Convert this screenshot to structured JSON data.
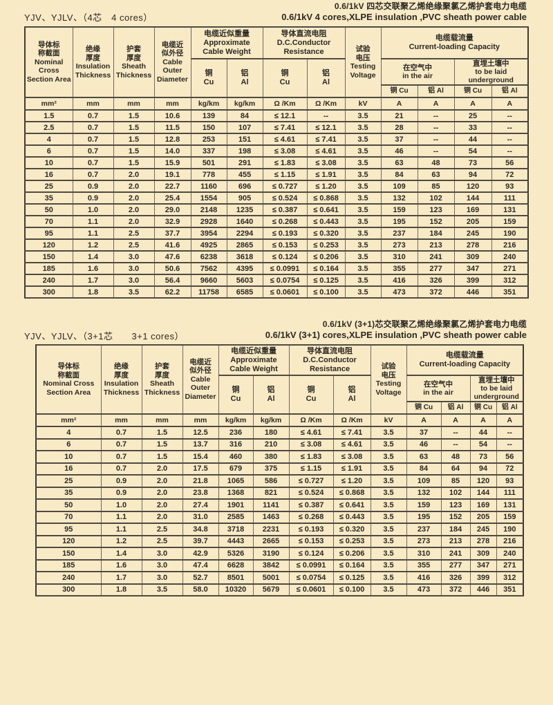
{
  "sections": [
    {
      "title_cn": "0.6/1kV 四芯交联聚乙烯绝缘聚氯乙烯护套电力电缆",
      "title_en": "0.6/1kV 4 cores,XLPE insulation ,PVC sheath power cable",
      "model_label": "YJV、YJLV、（4芯　4 cores）",
      "header": {
        "area": "导体标\n称截面\nNominal\nCross\nSection Area",
        "insulation": "绝缘\n厚度\nInsulation\nThickness",
        "sheath": "护套\n厚度\nSheath\nThickness",
        "diameter": "电缆近\n似外径\nCable\nOuter\nDiameter",
        "weight_group": "电缆近似重量\nApproximate\nCable Weight",
        "resistance_group": "导体直流电阻\nD.C.Conductor\nResistance",
        "voltage": "试验\n电压\nTesting\nVoltage",
        "capacity_group": "电缆载流量\nCurrent-loading Capacity",
        "air_group": "在空气中\nin the air",
        "underground_group": "直埋土壤中\nto be laid\nunderground",
        "cu_twoline": "铜\nCu",
        "al_twoline": "铝\nAl",
        "cu_oneline": "铜 Cu",
        "al_oneline": "铝 Al"
      },
      "units": [
        "mm²",
        "mm",
        "mm",
        "mm",
        "kg/km",
        "kg/km",
        "Ω /Km",
        "Ω /Km",
        "kV",
        "A",
        "A",
        "A",
        "A"
      ],
      "rows": [
        [
          "1.5",
          "0.7",
          "1.5",
          "10.6",
          "139",
          "84",
          "≤ 12.1",
          "--",
          "3.5",
          "21",
          "--",
          "25",
          "--"
        ],
        [
          "2.5",
          "0.7",
          "1.5",
          "11.5",
          "150",
          "107",
          "≤ 7.41",
          "≤ 12.1",
          "3.5",
          "28",
          "--",
          "33",
          "--"
        ],
        [
          "4",
          "0.7",
          "1.5",
          "12.8",
          "253",
          "151",
          "≤ 4.61",
          "≤ 7.41",
          "3.5",
          "37",
          "--",
          "44",
          "--"
        ],
        [
          "6",
          "0.7",
          "1.5",
          "14.0",
          "337",
          "198",
          "≤ 3.08",
          "≤ 4.61",
          "3.5",
          "46",
          "--",
          "54",
          "--"
        ],
        [
          "10",
          "0.7",
          "1.5",
          "15.9",
          "501",
          "291",
          "≤ 1.83",
          "≤ 3.08",
          "3.5",
          "63",
          "48",
          "73",
          "56"
        ],
        [
          "16",
          "0.7",
          "2.0",
          "19.1",
          "778",
          "455",
          "≤ 1.15",
          "≤ 1.91",
          "3.5",
          "84",
          "63",
          "94",
          "72"
        ],
        [
          "25",
          "0.9",
          "2.0",
          "22.7",
          "1160",
          "696",
          "≤ 0.727",
          "≤ 1.20",
          "3.5",
          "109",
          "85",
          "120",
          "93"
        ],
        [
          "35",
          "0.9",
          "2.0",
          "25.4",
          "1554",
          "905",
          "≤ 0.524",
          "≤ 0.868",
          "3.5",
          "132",
          "102",
          "144",
          "111"
        ],
        [
          "50",
          "1.0",
          "2.0",
          "29.0",
          "2148",
          "1235",
          "≤ 0.387",
          "≤ 0.641",
          "3.5",
          "159",
          "123",
          "169",
          "131"
        ],
        [
          "70",
          "1.1",
          "2.0",
          "32.9",
          "2928",
          "1640",
          "≤ 0.268",
          "≤ 0.443",
          "3.5",
          "195",
          "152",
          "205",
          "159"
        ],
        [
          "95",
          "1.1",
          "2.5",
          "37.7",
          "3954",
          "2294",
          "≤ 0.193",
          "≤ 0.320",
          "3.5",
          "237",
          "184",
          "245",
          "190"
        ],
        [
          "120",
          "1.2",
          "2.5",
          "41.6",
          "4925",
          "2865",
          "≤ 0.153",
          "≤ 0.253",
          "3.5",
          "273",
          "213",
          "278",
          "216"
        ],
        [
          "150",
          "1.4",
          "3.0",
          "47.6",
          "6238",
          "3618",
          "≤ 0.124",
          "≤ 0.206",
          "3.5",
          "310",
          "241",
          "309",
          "240"
        ],
        [
          "185",
          "1.6",
          "3.0",
          "50.6",
          "7562",
          "4395",
          "≤ 0.0991",
          "≤ 0.164",
          "3.5",
          "355",
          "277",
          "347",
          "271"
        ],
        [
          "240",
          "1.7",
          "3.0",
          "56.4",
          "9660",
          "5603",
          "≤ 0.0754",
          "≤ 0.125",
          "3.5",
          "416",
          "326",
          "399",
          "312"
        ],
        [
          "300",
          "1.8",
          "3.5",
          "62.2",
          "11758",
          "6585",
          "≤ 0.0601",
          "≤ 0.100",
          "3.5",
          "473",
          "372",
          "446",
          "351"
        ]
      ]
    },
    {
      "title_cn": "0.6/1kV (3+1)芯交联聚乙烯绝缘聚氯乙烯护套电力电缆",
      "title_en": "0.6/1kV (3+1) cores,XLPE insulation ,PVC sheath power cable",
      "model_label": "YJV、YJLV、（3+1芯　　3+1 cores）",
      "header": {
        "area": "导体标\n称截面\nNominal Cross\nSection Area",
        "insulation": "绝缘\n厚度\nInsulation\nThickness",
        "sheath": "护套\n厚度\nSheath\nThickness",
        "diameter": "电缆近\n似外径\nCable\nOuter\nDiameter",
        "weight_group": "电缆近似重量\nApproximate\nCable Weight",
        "resistance_group": "导体直流电阻\nD.C.Conductor\nResistance",
        "voltage": "试验\n电压\nTesting\nVoltage",
        "capacity_group": "电缆载流量\nCurrent-loading Capacity",
        "air_group": "在空气中\nin the air",
        "underground_group": "直埋土壤中\nto be laid\nunderground",
        "cu_twoline": "铜\nCu",
        "al_twoline": "铝\nAl",
        "cu_oneline": "铜 Cu",
        "al_oneline": "铝 Al"
      },
      "units": [
        "mm²",
        "mm",
        "mm",
        "mm",
        "kg/km",
        "kg/km",
        "Ω /Km",
        "Ω /Km",
        "kV",
        "A",
        "A",
        "A",
        "A"
      ],
      "rows": [
        [
          "4",
          "0.7",
          "1.5",
          "12.5",
          "236",
          "180",
          "≤ 4.61",
          "≤ 7.41",
          "3.5",
          "37",
          "--",
          "44",
          "--"
        ],
        [
          "6",
          "0.7",
          "1.5",
          "13.7",
          "316",
          "210",
          "≤ 3.08",
          "≤ 4.61",
          "3.5",
          "46",
          "--",
          "54",
          "--"
        ],
        [
          "10",
          "0.7",
          "1.5",
          "15.4",
          "460",
          "380",
          "≤ 1.83",
          "≤ 3.08",
          "3.5",
          "63",
          "48",
          "73",
          "56"
        ],
        [
          "16",
          "0.7",
          "2.0",
          "17.5",
          "679",
          "375",
          "≤ 1.15",
          "≤ 1.91",
          "3.5",
          "84",
          "64",
          "94",
          "72"
        ],
        [
          "25",
          "0.9",
          "2.0",
          "21.8",
          "1065",
          "586",
          "≤ 0.727",
          "≤ 1.20",
          "3.5",
          "109",
          "85",
          "120",
          "93"
        ],
        [
          "35",
          "0.9",
          "2.0",
          "23.8",
          "1368",
          "821",
          "≤ 0.524",
          "≤ 0.868",
          "3.5",
          "132",
          "102",
          "144",
          "111"
        ],
        [
          "50",
          "1.0",
          "2.0",
          "27.4",
          "1901",
          "1141",
          "≤ 0.387",
          "≤ 0.641",
          "3.5",
          "159",
          "123",
          "169",
          "131"
        ],
        [
          "70",
          "1.1",
          "2.0",
          "31.0",
          "2585",
          "1463",
          "≤ 0.268",
          "≤ 0.443",
          "3.5",
          "195",
          "152",
          "205",
          "159"
        ],
        [
          "95",
          "1.1",
          "2.5",
          "34.8",
          "3718",
          "2231",
          "≤ 0.193",
          "≤ 0.320",
          "3.5",
          "237",
          "184",
          "245",
          "190"
        ],
        [
          "120",
          "1.2",
          "2.5",
          "39.7",
          "4443",
          "2665",
          "≤ 0.153",
          "≤ 0.253",
          "3.5",
          "273",
          "213",
          "278",
          "216"
        ],
        [
          "150",
          "1.4",
          "3.0",
          "42.9",
          "5326",
          "3190",
          "≤ 0.124",
          "≤ 0.206",
          "3.5",
          "310",
          "241",
          "309",
          "240"
        ],
        [
          "185",
          "1.6",
          "3.0",
          "47.4",
          "6628",
          "3842",
          "≤ 0.0991",
          "≤ 0.164",
          "3.5",
          "355",
          "277",
          "347",
          "271"
        ],
        [
          "240",
          "1.7",
          "3.0",
          "52.7",
          "8501",
          "5001",
          "≤ 0.0754",
          "≤ 0.125",
          "3.5",
          "416",
          "326",
          "399",
          "312"
        ],
        [
          "300",
          "1.8",
          "3.5",
          "58.0",
          "10320",
          "5679",
          "≤ 0.0601",
          "≤ 0.100",
          "3.5",
          "473",
          "372",
          "446",
          "351"
        ]
      ]
    }
  ],
  "colors": {
    "page_bg": "#f9eac6",
    "line_dark": "#4e4a40",
    "text": "#2b2923"
  }
}
